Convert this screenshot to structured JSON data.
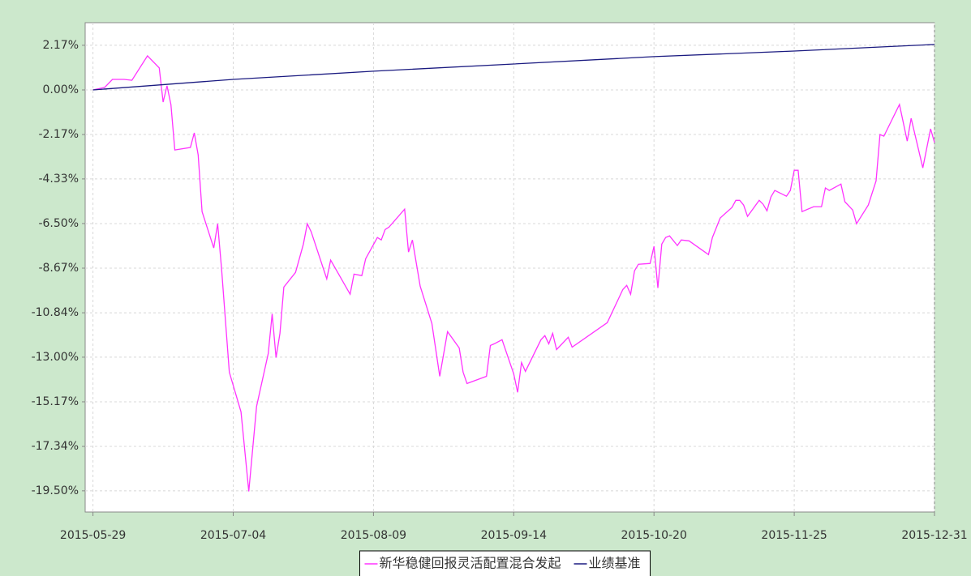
{
  "chart_data": {
    "type": "line",
    "xlim": [
      "2015-05-27",
      "2015-12-31"
    ],
    "xticks": [
      "2015-05-29",
      "2015-07-04",
      "2015-08-09",
      "2015-09-14",
      "2015-10-20",
      "2015-11-25",
      "2015-12-31"
    ],
    "ylim": [
      -20.53,
      3.27
    ],
    "yticks": [
      {
        "value": 2.17,
        "label": "2.17%"
      },
      {
        "value": 0,
        "label": "0.00%"
      },
      {
        "value": -2.17,
        "label": "-2.17%"
      },
      {
        "value": -4.33,
        "label": "-4.33%"
      },
      {
        "value": -6.5,
        "label": "-6.50%"
      },
      {
        "value": -8.67,
        "label": "-8.67%"
      },
      {
        "value": -10.84,
        "label": "-10.84%"
      },
      {
        "value": -13,
        "label": "-13.00%"
      },
      {
        "value": -15.17,
        "label": "-15.17%"
      },
      {
        "value": -17.34,
        "label": "-17.34%"
      },
      {
        "value": -19.5,
        "label": "-19.50%"
      }
    ],
    "grid": true,
    "legend": "bottom",
    "series": [
      {
        "name": "新华稳健回报灵活配置混合发起",
        "color": "#ff33ff",
        "x": [
          "2015-05-29",
          "2015-06-01",
          "2015-06-03",
          "2015-06-06",
          "2015-06-08",
          "2015-06-12",
          "2015-06-15",
          "2015-06-16",
          "2015-06-17",
          "2015-06-18",
          "2015-06-19",
          "2015-06-23",
          "2015-06-24",
          "2015-06-25",
          "2015-06-26",
          "2015-06-29",
          "2015-06-30",
          "2015-07-01",
          "2015-07-03",
          "2015-07-06",
          "2015-07-08",
          "2015-07-10",
          "2015-07-13",
          "2015-07-14",
          "2015-07-15",
          "2015-07-16",
          "2015-07-17",
          "2015-07-20",
          "2015-07-22",
          "2015-07-23",
          "2015-07-24",
          "2015-07-28",
          "2015-07-29",
          "2015-08-03",
          "2015-08-04",
          "2015-08-06",
          "2015-08-07",
          "2015-08-10",
          "2015-08-11",
          "2015-08-12",
          "2015-08-13",
          "2015-08-17",
          "2015-08-18",
          "2015-08-19",
          "2015-08-21",
          "2015-08-24",
          "2015-08-26",
          "2015-08-28",
          "2015-08-31",
          "2015-09-01",
          "2015-09-02",
          "2015-09-07",
          "2015-09-08",
          "2015-09-09",
          "2015-09-11",
          "2015-09-14",
          "2015-09-15",
          "2015-09-16",
          "2015-09-17",
          "2015-09-21",
          "2015-09-22",
          "2015-09-23",
          "2015-09-24",
          "2015-09-25",
          "2015-09-28",
          "2015-09-29",
          "2015-10-08",
          "2015-10-12",
          "2015-10-13",
          "2015-10-14",
          "2015-10-15",
          "2015-10-16",
          "2015-10-19",
          "2015-10-20",
          "2015-10-21",
          "2015-10-22",
          "2015-10-23",
          "2015-10-24",
          "2015-10-26",
          "2015-10-27",
          "2015-10-29",
          "2015-11-03",
          "2015-11-04",
          "2015-11-06",
          "2015-11-09",
          "2015-11-10",
          "2015-11-11",
          "2015-11-12",
          "2015-11-13",
          "2015-11-16",
          "2015-11-17",
          "2015-11-18",
          "2015-11-19",
          "2015-11-20",
          "2015-11-23",
          "2015-11-24",
          "2015-11-25",
          "2015-11-26",
          "2015-11-27",
          "2015-11-30",
          "2015-12-02",
          "2015-12-03",
          "2015-12-04",
          "2015-12-07",
          "2015-12-08",
          "2015-12-10",
          "2015-12-11",
          "2015-12-14",
          "2015-12-16",
          "2015-12-17",
          "2015-12-18",
          "2015-12-22",
          "2015-12-24",
          "2015-12-25",
          "2015-12-28",
          "2015-12-30",
          "2015-12-31"
        ],
        "values": [
          0,
          0.12,
          0.51,
          0.51,
          0.47,
          1.66,
          1.07,
          -0.59,
          0.2,
          -0.71,
          -2.92,
          -2.8,
          -2.09,
          -3.16,
          -5.92,
          -7.69,
          -6.51,
          -8.68,
          -13.73,
          -15.66,
          -19.53,
          -15.39,
          -12.82,
          -10.89,
          -13.02,
          -11.84,
          -9.59,
          -8.88,
          -7.5,
          -6.51,
          -6.9,
          -9.19,
          -8.28,
          -9.94,
          -8.96,
          -9.03,
          -8.21,
          -7.18,
          -7.3,
          -6.79,
          -6.67,
          -5.8,
          -7.89,
          -7.3,
          -9.55,
          -11.36,
          -13.93,
          -11.76,
          -12.55,
          -13.73,
          -14.28,
          -13.93,
          -12.43,
          -12.35,
          -12.15,
          -13.81,
          -14.71,
          -13.26,
          -13.69,
          -12.15,
          -11.95,
          -12.35,
          -11.84,
          -12.63,
          -12.03,
          -12.51,
          -11.32,
          -9.71,
          -9.51,
          -9.94,
          -8.8,
          -8.48,
          -8.44,
          -7.61,
          -9.63,
          -7.5,
          -7.18,
          -7.1,
          -7.57,
          -7.3,
          -7.34,
          -8.01,
          -7.18,
          -6.23,
          -5.72,
          -5.37,
          -5.37,
          -5.6,
          -6.15,
          -5.37,
          -5.56,
          -5.88,
          -5.21,
          -4.89,
          -5.17,
          -4.89,
          -3.91,
          -3.91,
          -5.92,
          -5.68,
          -5.68,
          -4.77,
          -4.89,
          -4.58,
          -5.44,
          -5.84,
          -6.51,
          -5.6,
          -4.42,
          -2.17,
          -2.25,
          -0.71,
          -2.49,
          -1.38,
          -3.79,
          -1.89,
          -2.56
        ]
      },
      {
        "name": "业绩基准",
        "color": "#1a1a80",
        "x": [
          "2015-05-29",
          "2015-07-04",
          "2015-08-09",
          "2015-09-14",
          "2015-10-20",
          "2015-11-25",
          "2015-12-31"
        ],
        "values": [
          0,
          0.51,
          0.91,
          1.26,
          1.62,
          1.89,
          2.21
        ]
      }
    ]
  }
}
